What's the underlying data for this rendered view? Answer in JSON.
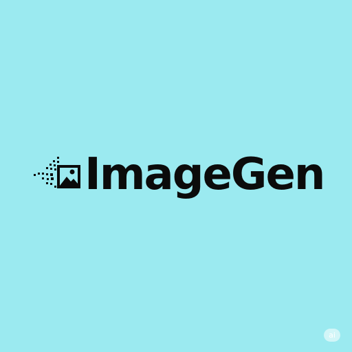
{
  "colors": {
    "background": "#9beaf0",
    "ink": "#0b0b0b"
  },
  "logo": {
    "icon": "image-frame-pixel-icon",
    "wordmark": "ImageGen"
  },
  "watermark": {
    "label": "ai"
  }
}
